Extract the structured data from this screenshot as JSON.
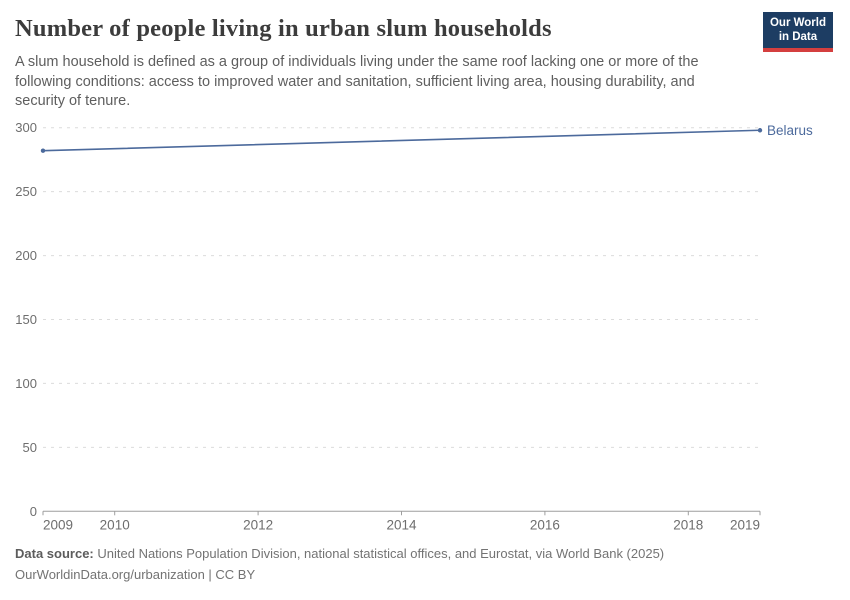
{
  "header": {
    "title": "Number of people living in urban slum households",
    "subtitle": "A slum household is defined as a group of individuals living under the same roof lacking one or more of the following conditions: access to improved water and sanitation, sufficient living area, housing durability, and security of tenure.",
    "logo": {
      "line1": "Our World",
      "line2": "in Data",
      "bg_color": "#1d3d63",
      "bar_color": "#d43f3f"
    }
  },
  "chart_data": {
    "type": "line",
    "title": "Number of people living in urban slum households",
    "xlabel": "",
    "ylabel": "",
    "xlim": [
      2009,
      2019
    ],
    "ylim": [
      0,
      300
    ],
    "yticks": [
      0,
      50,
      100,
      150,
      200,
      250,
      300
    ],
    "xticks": [
      2009,
      2010,
      2012,
      2014,
      2016,
      2018,
      2019
    ],
    "grid": "horizontal-dashed",
    "legend_position": "right-of-line-end",
    "series": [
      {
        "name": "Belarus",
        "color": "#4c6a9c",
        "x": [
          2009,
          2019
        ],
        "values": [
          282,
          298
        ]
      }
    ],
    "axis_colors": {
      "tick_label": "#6e6e6e",
      "gridline": "#dcdcdc",
      "axis_line": "#9e9e9e"
    }
  },
  "footer": {
    "source_label": "Data source:",
    "source_text": "United Nations Population Division, national statistical offices, and Eurostat, via World Bank (2025)",
    "attribution": "OurWorldinData.org/urbanization | CC BY"
  }
}
